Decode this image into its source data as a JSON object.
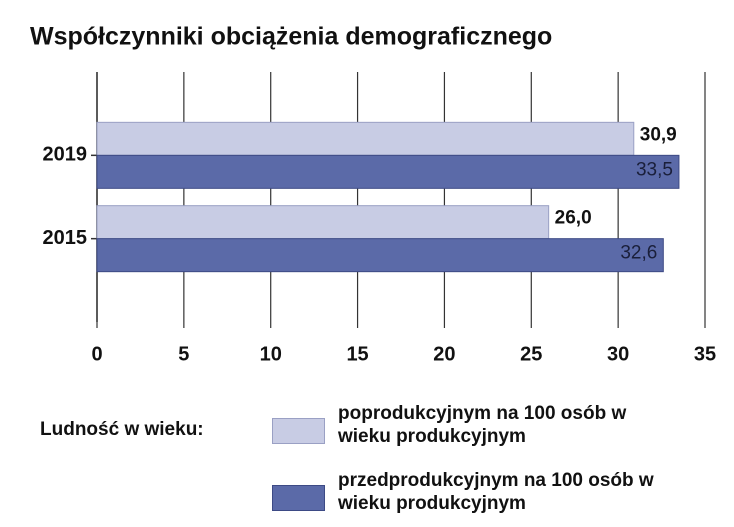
{
  "chart_data": {
    "type": "hbar",
    "title": "Współczynniki obciążenia demograficznego",
    "categories": [
      "2019",
      "2015"
    ],
    "series": [
      {
        "name": "poprodukcyjnym na 100 osób w wieku produkcyjnym",
        "color": "#c8cce4",
        "values": [
          30.9,
          26.0
        ],
        "value_labels": [
          "30,9",
          "26,0"
        ]
      },
      {
        "name": "przedprodukcyjnym na 100 osób w wieku produkcyjnym",
        "color": "#5b6aa8",
        "values": [
          33.5,
          32.6
        ],
        "value_labels": [
          "33,5",
          "32,6"
        ]
      }
    ],
    "legend_title": "Ludność w wieku:",
    "xlim": [
      0,
      35
    ],
    "xticks": [
      0,
      5,
      10,
      15,
      20,
      25,
      30,
      35
    ],
    "grid": true
  }
}
